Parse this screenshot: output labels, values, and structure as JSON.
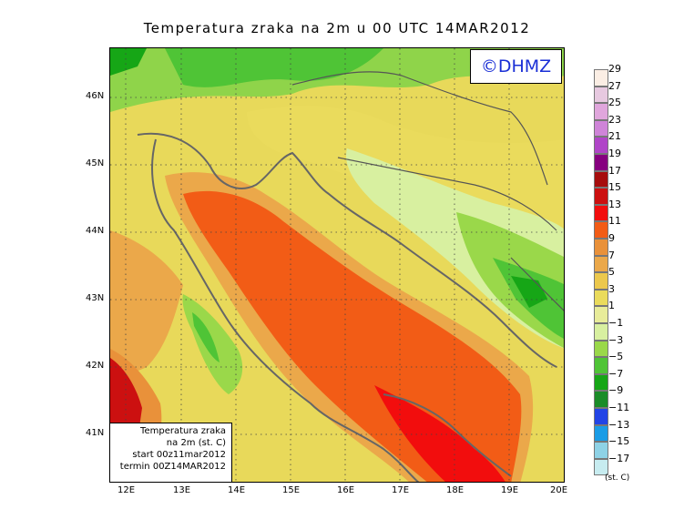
{
  "title": "Temperatura zraka na 2m u 00 UTC 14MAR2012",
  "logo": "©DHMZ",
  "info_box": {
    "line1": "Temperatura zraka",
    "line2": "na 2m (st. C)",
    "line3": "start 00z11mar2012",
    "line4": "termin 00Z14MAR2012"
  },
  "axes": {
    "lat_labels": [
      "46N",
      "45N",
      "44N",
      "43N",
      "42N",
      "41N"
    ],
    "lon_labels": [
      "12E",
      "13E",
      "14E",
      "15E",
      "16E",
      "17E",
      "18E",
      "19E",
      "20E"
    ]
  },
  "colorbar": {
    "units": "(st. C)",
    "levels": [
      "29",
      "27",
      "25",
      "23",
      "21",
      "19",
      "17",
      "15",
      "13",
      "11",
      "9",
      "7",
      "5",
      "3",
      "1",
      "−1",
      "−3",
      "−5",
      "−7",
      "−9",
      "−11",
      "−13",
      "−15",
      "−17"
    ],
    "colors": [
      "#fbeee4",
      "#e7c9e0",
      "#e0a6dc",
      "#cf84d8",
      "#b045c8",
      "#86007f",
      "#a60d0d",
      "#cc1010",
      "#f20d0d",
      "#f25c16",
      "#e9913a",
      "#eba84a",
      "#ecc84c",
      "#eadb5c",
      "#e8ec9a",
      "#d8f0a0",
      "#9ad84a",
      "#4fc436",
      "#16a616",
      "#1a8c28",
      "#2244e6",
      "#1a9ce6",
      "#8ed2e6",
      "#c7ecf0"
    ]
  }
}
